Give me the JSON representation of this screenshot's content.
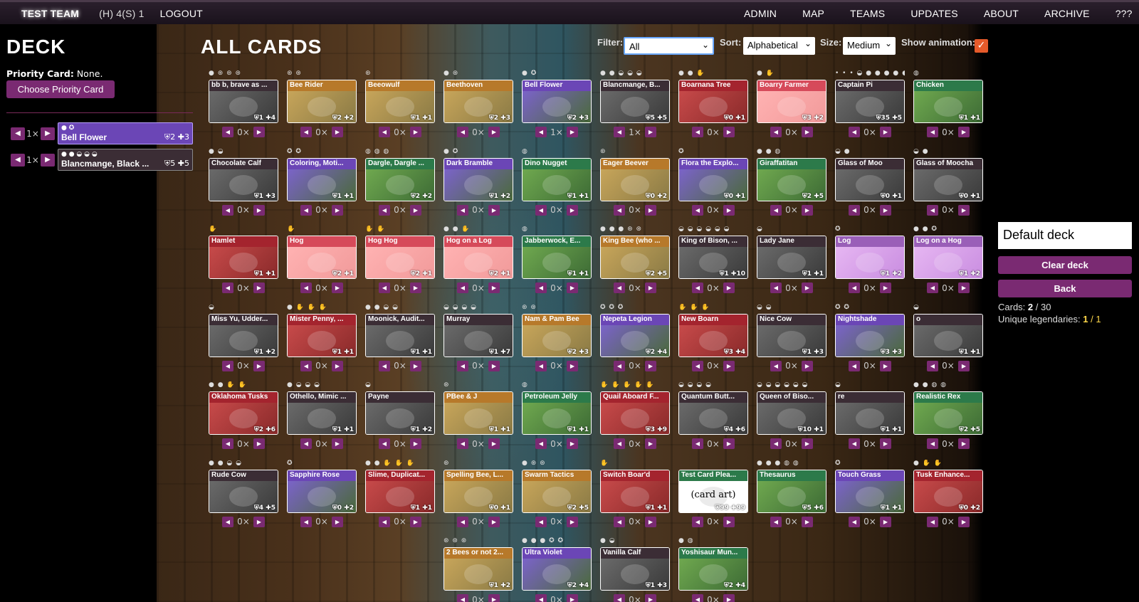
{
  "topbar": {
    "team": "TEST TEAM",
    "hint": "(H) 4(S) 1",
    "logout": "LOGOUT",
    "nav": [
      "ADMIN",
      "MAP",
      "TEAMS",
      "UPDATES",
      "ABOUT",
      "ARCHIVE",
      "???"
    ]
  },
  "deck": {
    "title": "DECK",
    "priority_label": "Priority Card:",
    "priority_value": "None.",
    "choose_button": "Choose Priority Card",
    "entries": [
      {
        "count": "1×",
        "icons": "● ✪",
        "name": "Bell Flower",
        "stats": "⛨2 ✚3",
        "color": "#6b46b6"
      },
      {
        "count": "1×",
        "icons": "● ● ◒ ◒ ◒",
        "name": "Blancmange, Black ...",
        "stats": "⛨5 ✚5",
        "color": "#3b2d35"
      }
    ]
  },
  "all_cards": {
    "title": "ALL CARDS",
    "filter_label": "Filter:",
    "filter_value": "All",
    "sort_label": "Sort:",
    "sort_value": "Alphabetical",
    "size_label": "Size:",
    "size_value": "Medium",
    "animation_label": "Show animation:",
    "animation_checked": "✓"
  },
  "cards": [
    {
      "name": "bb b, brave as ...",
      "icons": "● ⊛ ⊛ ⊛",
      "stats": "⛨1 ✚4",
      "color": "c-gray",
      "qty": "0×"
    },
    {
      "name": "Bee Rider",
      "icons": "⊛ ⊛",
      "stats": "⛨2 ✚2",
      "color": "c-yellow",
      "qty": "0×"
    },
    {
      "name": "Beeowulf",
      "icons": "⊛",
      "stats": "⛨1 ✚1",
      "color": "c-yellow",
      "qty": "0×"
    },
    {
      "name": "Beethoven",
      "icons": "● ⊛",
      "stats": "⛨2 ✚3",
      "color": "c-yellow",
      "qty": "0×"
    },
    {
      "name": "Bell Flower",
      "icons": "● ✪",
      "stats": "⛨2 ✚3",
      "color": "c-purple",
      "qty": "1×"
    },
    {
      "name": "Blancmange, B...",
      "icons": "● ● ◒ ◒ ◒",
      "stats": "⛨5 ✚5",
      "color": "c-gray",
      "qty": "1×"
    },
    {
      "name": "Boarnana Tree",
      "icons": "● ● ✋",
      "stats": "⛨0 ✚1",
      "color": "c-red",
      "qty": "0×"
    },
    {
      "name": "Boarry Farmer",
      "icons": "● ✋",
      "stats": "⛨3 ✚2",
      "color": "c-pink",
      "qty": "0×"
    },
    {
      "name": "Captain Pi",
      "icons": "• • • ◒ ● ● ● ● ●",
      "stats": "⛨35 ✚5",
      "color": "c-gray",
      "qty": "0×"
    },
    {
      "name": "Chicken",
      "icons": "◍",
      "stats": "⛨1 ✚1",
      "color": "c-green",
      "qty": "0×"
    },
    {
      "name": "Chocolate Calf",
      "icons": "● ◒",
      "stats": "⛨1 ✚3",
      "color": "c-gray",
      "qty": "0×"
    },
    {
      "name": "Coloring, Moti...",
      "icons": "✪ ✪",
      "stats": "⛨1 ✚1",
      "color": "c-purple",
      "qty": "0×"
    },
    {
      "name": "Dargle, Dargle ...",
      "icons": "◍ ◍ ◍",
      "stats": "⛨2 ✚2",
      "color": "c-green",
      "qty": "0×"
    },
    {
      "name": "Dark Bramble",
      "icons": "● ✪",
      "stats": "⛨1 ✚2",
      "color": "c-purple",
      "qty": "0×"
    },
    {
      "name": "Dino Nugget",
      "icons": "◍",
      "stats": "⛨1 ✚1",
      "color": "c-green",
      "qty": "0×"
    },
    {
      "name": "Eager Beever",
      "icons": "⊛",
      "stats": "⛨0 ✚2",
      "color": "c-yellow",
      "qty": "0×"
    },
    {
      "name": "Flora the Explo...",
      "icons": "✪",
      "stats": "⛨0 ✚1",
      "color": "c-purple",
      "qty": "0×"
    },
    {
      "name": "Giraffatitan",
      "icons": "● ● ◍",
      "stats": "⛨2 ✚5",
      "color": "c-green",
      "qty": "0×"
    },
    {
      "name": "Glass of Moo",
      "icons": "◒ ●",
      "stats": "⛨0 ✚1",
      "color": "c-gray",
      "qty": "0×"
    },
    {
      "name": "Glass of Moocha",
      "icons": "◒ ●",
      "stats": "⛨0 ✚1",
      "color": "c-gray",
      "qty": "0×"
    },
    {
      "name": "Hamlet",
      "icons": "✋",
      "stats": "⛨1 ✚1",
      "color": "c-red",
      "qty": "0×"
    },
    {
      "name": "Hog",
      "icons": "✋",
      "stats": "⛨2 ✚1",
      "color": "c-pink",
      "qty": "0×"
    },
    {
      "name": "Hog Hog",
      "icons": "✋ ✋",
      "stats": "⛨2 ✚1",
      "color": "c-pink",
      "qty": "0×"
    },
    {
      "name": "Hog on a Log",
      "icons": "● ● ✋",
      "stats": "⛨2 ✚1",
      "color": "c-pink",
      "qty": "0×"
    },
    {
      "name": "Jabberwock, E...",
      "icons": "◍",
      "stats": "⛨1 ✚1",
      "color": "c-green",
      "qty": "0×"
    },
    {
      "name": "King Bee (who ...",
      "icons": "● ● ● ⊛ ⊛",
      "stats": "⛨2 ✚5",
      "color": "c-yellow",
      "qty": "0×"
    },
    {
      "name": "King of Bison, ...",
      "icons": "◒ ◒ ◒ ◒ ◒ ◒",
      "stats": "⛨1 ✚10",
      "color": "c-gray",
      "qty": "0×"
    },
    {
      "name": "Lady Jane",
      "icons": "◒",
      "stats": "⛨1 ✚1",
      "color": "c-gray",
      "qty": "0×"
    },
    {
      "name": "Log",
      "icons": "✪",
      "stats": "⛨1 ✚2",
      "color": "c-lilac",
      "qty": "0×"
    },
    {
      "name": "Log on a Hog",
      "icons": "● ● ✪",
      "stats": "⛨1 ✚2",
      "color": "c-lilac",
      "qty": "0×"
    },
    {
      "name": "Miss Yu, Udder...",
      "icons": "◒",
      "stats": "⛨1 ✚2",
      "color": "c-gray",
      "qty": "0×"
    },
    {
      "name": "Mister Penny, ...",
      "icons": "● ✋ ✋ ✋",
      "stats": "⛨1 ✚1",
      "color": "c-red",
      "qty": "0×"
    },
    {
      "name": "Moonick, Audit...",
      "icons": "● ● ◒ ◒",
      "stats": "⛨1 ✚1",
      "color": "c-gray",
      "qty": "0×"
    },
    {
      "name": "Murray",
      "icons": "◒ ◒ ◒ ◒",
      "stats": "⛨1 ✚7",
      "color": "c-gray",
      "qty": "0×"
    },
    {
      "name": "Nam & Pam Bee",
      "icons": "⊛ ⊛",
      "stats": "⛨2 ✚3",
      "color": "c-yellow",
      "qty": "0×"
    },
    {
      "name": "Nepeta Legion",
      "icons": "✪ ✪ ✪",
      "stats": "⛨2 ✚4",
      "color": "c-purple",
      "qty": "0×"
    },
    {
      "name": "New Boarn",
      "icons": "✋ ✋ ✋",
      "stats": "⛨3 ✚4",
      "color": "c-red",
      "qty": "0×"
    },
    {
      "name": "Nice Cow",
      "icons": "◒ ◒",
      "stats": "⛨1 ✚3",
      "color": "c-gray",
      "qty": "0×"
    },
    {
      "name": "Nightshade",
      "icons": "✪ ✪",
      "stats": "⛨3 ✚3",
      "color": "c-purple",
      "qty": "0×"
    },
    {
      "name": "o",
      "icons": "◒",
      "stats": "⛨1 ✚1",
      "color": "c-gray",
      "qty": "0×"
    },
    {
      "name": "Oklahoma Tusks",
      "icons": "● ● ✋ ✋",
      "stats": "⛨2 ✚6",
      "color": "c-red",
      "qty": "0×"
    },
    {
      "name": "Othello, Mimic ...",
      "icons": "● ◒ ◒ ◒",
      "stats": "⛨1 ✚1",
      "color": "c-gray",
      "qty": "0×"
    },
    {
      "name": "Payne",
      "icons": "◒",
      "stats": "⛨1 ✚2",
      "color": "c-gray",
      "qty": "0×"
    },
    {
      "name": "PBee & J",
      "icons": "⊛",
      "stats": "⛨1 ✚1",
      "color": "c-yellow",
      "qty": "0×"
    },
    {
      "name": "Petroleum Jelly",
      "icons": "◍",
      "stats": "⛨1 ✚1",
      "color": "c-green",
      "qty": "0×"
    },
    {
      "name": "Quail Aboard F...",
      "icons": "✋ ✋ ✋ ✋ ✋",
      "stats": "⛨3 ✚9",
      "color": "c-red",
      "qty": "0×"
    },
    {
      "name": "Quantum Butt...",
      "icons": "◒ ◒ ◒ ◒",
      "stats": "⛨4 ✚6",
      "color": "c-gray",
      "qty": "0×"
    },
    {
      "name": "Queen of Biso...",
      "icons": "◒ ◒ ◒ ◒ ◒ ◒",
      "stats": "⛨10 ✚1",
      "color": "c-gray",
      "qty": "0×"
    },
    {
      "name": "re",
      "icons": "◒",
      "stats": "⛨1 ✚1",
      "color": "c-gray",
      "qty": "0×"
    },
    {
      "name": "Realistic Rex",
      "icons": "● ● ◍ ◍",
      "stats": "⛨2 ✚5",
      "color": "c-green",
      "qty": "0×"
    },
    {
      "name": "Rude Cow",
      "icons": "● ● ◒ ◒",
      "stats": "⛨4 ✚5",
      "color": "c-gray",
      "qty": "0×"
    },
    {
      "name": "Sapphire Rose",
      "icons": "✪",
      "stats": "⛨0 ✚2",
      "color": "c-purple",
      "qty": "0×"
    },
    {
      "name": "Slime, Duplicat...",
      "icons": "● ● ✋ ✋ ✋",
      "stats": "⛨1 ✚1",
      "color": "c-red",
      "qty": "0×"
    },
    {
      "name": "Spelling Bee, L...",
      "icons": "⊛",
      "stats": "⛨0 ✚1",
      "color": "c-yellow",
      "qty": "0×"
    },
    {
      "name": "Swarm Tactics",
      "icons": "● ⊛ ⊛",
      "stats": "⛨2 ✚5",
      "color": "c-yellow",
      "qty": "0×"
    },
    {
      "name": "Switch Boar'd",
      "icons": "✋",
      "stats": "⛨1 ✚1",
      "color": "c-red",
      "qty": "0×"
    },
    {
      "name": "Test Card Plea...",
      "icons": "",
      "stats": "⛨99 ✚99",
      "color": "c-white",
      "qty": "0×"
    },
    {
      "name": "Thesaurus",
      "icons": "● ● ● ◍ ◍",
      "stats": "⛨5 ✚6",
      "color": "c-green",
      "qty": "0×"
    },
    {
      "name": "Touch Grass",
      "icons": "✪",
      "stats": "⛨1 ✚1",
      "color": "c-purple",
      "qty": "0×"
    },
    {
      "name": "Tusk Enhance...",
      "icons": "● ✋ ✋",
      "stats": "⛨0 ✚2",
      "color": "c-red",
      "qty": "0×"
    },
    {
      "name": "2 Bees or not 2...",
      "icons": "⊛ ⊛ ⊛",
      "stats": "⛨1 ✚2",
      "color": "c-yellow",
      "qty": "0×"
    },
    {
      "name": "Ultra Violet",
      "icons": "● ● ● ✪ ✪",
      "stats": "⛨2 ✚4",
      "color": "c-purple",
      "qty": "0×"
    },
    {
      "name": "Vanilla Calf",
      "icons": "● ◒",
      "stats": "⛨1 ✚3",
      "color": "c-gray",
      "qty": "0×"
    },
    {
      "name": "Yoshisaur Mun...",
      "icons": "● ◍",
      "stats": "⛨2 ✚4",
      "color": "c-green",
      "qty": "0×"
    }
  ],
  "right": {
    "deck_name": "Default deck",
    "clear": "Clear deck",
    "back": "Back",
    "cards_label": "Cards:",
    "cards_count": "2",
    "cards_max": "/ 30",
    "legend_label": "Unique legendaries:",
    "legend_count": "1",
    "legend_max": "/ 1"
  },
  "art_card_text": "(card art)"
}
